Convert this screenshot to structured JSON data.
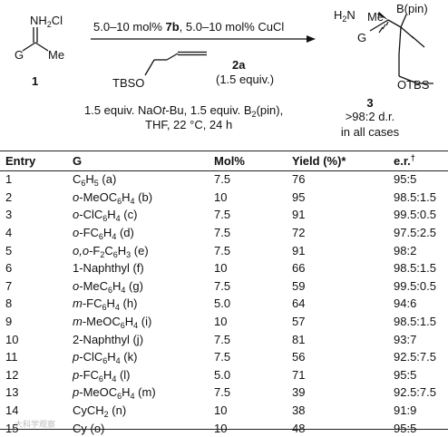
{
  "scheme": {
    "sm_amine": "NH",
    "sm_amine_sub": "2",
    "sm_cl": "Cl",
    "sm_g": "G",
    "sm_me": "Me",
    "sm_number": "1",
    "conditions_top": "5.0–10 mol% ",
    "conditions_top_bold": "7b",
    "conditions_top_rest": ", 5.0–10 mol% CuCl",
    "allene_tbso": "TBSO",
    "allene_number": "2a",
    "allene_equiv": "(1.5 equiv.)",
    "conditions_line1_a": "1.5 equiv. NaO",
    "conditions_line1_italic": "t",
    "conditions_line1_b": "-Bu, 1.5 equiv. B",
    "conditions_line1_sub": "2",
    "conditions_line1_c": "(pin)",
    "conditions_line1_d": ",",
    "conditions_line2": "THF, 22 °C, 24 h",
    "product_h2n": "H",
    "product_h2n_sub": "2",
    "product_h2n_n": "N",
    "product_me": "Me",
    "product_g": "G",
    "product_bpin": "B(pin)",
    "product_otbs": "OTBS",
    "product_number": "3",
    "product_dr": ">98:2 d.r.",
    "product_note": "in all cases"
  },
  "table": {
    "headers": {
      "entry": "Entry",
      "g": "G",
      "mol": "Mol%",
      "yield": "Yield (%)*",
      "er": "e.r.",
      "er_mark": "†"
    },
    "rows": [
      {
        "entry": "1",
        "g_pre": "",
        "g_main": "C",
        "g_sub1": "6",
        "g_mid": "H",
        "g_sub2": "5",
        "g_tail": " (a)",
        "mol": "7.5",
        "yield": "76",
        "er": "95:5"
      },
      {
        "entry": "2",
        "g_pre": "o",
        "g_main": "-MeOC",
        "g_sub1": "6",
        "g_mid": "H",
        "g_sub2": "4",
        "g_tail": " (b)",
        "mol": "10",
        "yield": "95",
        "er": "98.5:1.5"
      },
      {
        "entry": "3",
        "g_pre": "o",
        "g_main": "-ClC",
        "g_sub1": "6",
        "g_mid": "H",
        "g_sub2": "4",
        "g_tail": " (c)",
        "mol": "7.5",
        "yield": "91",
        "er": "99.5:0.5"
      },
      {
        "entry": "4",
        "g_pre": "o",
        "g_main": "-FC",
        "g_sub1": "6",
        "g_mid": "H",
        "g_sub2": "4",
        "g_tail": " (d)",
        "mol": "7.5",
        "yield": "72",
        "er": "97.5:2.5"
      },
      {
        "entry": "5",
        "g_pre": "o,o",
        "g_main": "-F",
        "g_sub1": "2",
        "g_mid": "C",
        "g_sub2": "6",
        "g_tail_h": "H",
        "g_sub3": "3",
        "g_tail": " (e)",
        "mol": "7.5",
        "yield": "91",
        "er": "98:2"
      },
      {
        "entry": "6",
        "g_pre": "",
        "g_main": "1-Naphthyl (f)",
        "mol": "10",
        "yield": "66",
        "er": "98.5:1.5"
      },
      {
        "entry": "7",
        "g_pre": "o",
        "g_main": "-MeC",
        "g_sub1": "6",
        "g_mid": "H",
        "g_sub2": "4",
        "g_tail": " (g)",
        "mol": "7.5",
        "yield": "59",
        "er": "99.5:0.5"
      },
      {
        "entry": "8",
        "g_pre": "m",
        "g_main": "-FC",
        "g_sub1": "6",
        "g_mid": "H",
        "g_sub2": "4",
        "g_tail": " (h)",
        "mol": "5.0",
        "yield": "64",
        "er": "94:6"
      },
      {
        "entry": "9",
        "g_pre": "m",
        "g_main": "-MeOC",
        "g_sub1": "6",
        "g_mid": "H",
        "g_sub2": "4",
        "g_tail": " (i)",
        "mol": "10",
        "yield": "57",
        "er": "98.5:1.5"
      },
      {
        "entry": "10",
        "g_pre": "",
        "g_main": "2-Naphthyl (j)",
        "mol": "7.5",
        "yield": "81",
        "er": "93:7"
      },
      {
        "entry": "11",
        "g_pre": "p",
        "g_main": "-ClC",
        "g_sub1": "6",
        "g_mid": "H",
        "g_sub2": "4",
        "g_tail": " (k)",
        "mol": "7.5",
        "yield": "56",
        "er": "92.5:7.5"
      },
      {
        "entry": "12",
        "g_pre": "p",
        "g_main": "-FC",
        "g_sub1": "6",
        "g_mid": "H",
        "g_sub2": "4",
        "g_tail": " (l)",
        "mol": "5.0",
        "yield": "71",
        "er": "95:5"
      },
      {
        "entry": "13",
        "g_pre": "p",
        "g_main": "-MeOC",
        "g_sub1": "6",
        "g_mid": "H",
        "g_sub2": "4",
        "g_tail": " (m)",
        "mol": "7.5",
        "yield": "39",
        "er": "92.5:7.5"
      },
      {
        "entry": "14",
        "g_pre": "",
        "g_main": "CyCH",
        "g_sub1": "2",
        "g_tail": " (n)",
        "mol": "10",
        "yield": "38",
        "er": "91:9"
      },
      {
        "entry": "15",
        "g_pre": "",
        "g_main": "Cy (o)",
        "mol": "10",
        "yield": "48",
        "er": "95:5"
      }
    ]
  },
  "watermark": "大科学观察"
}
